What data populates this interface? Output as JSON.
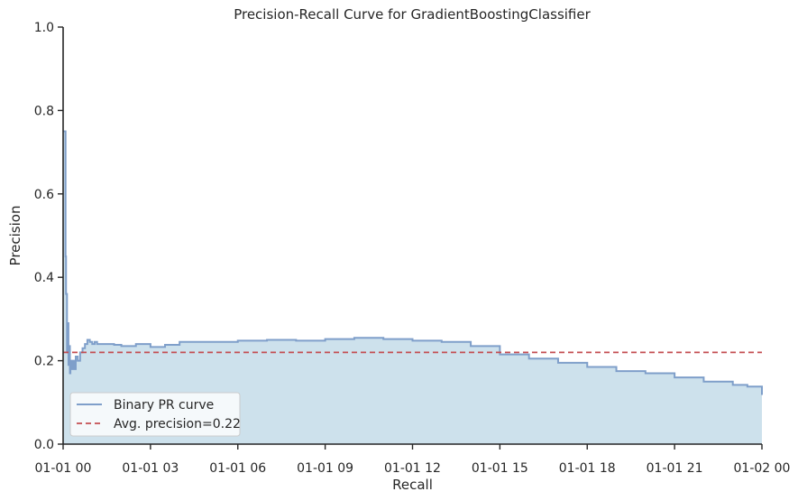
{
  "chart_data": {
    "type": "area",
    "title": "Precision-Recall Curve for GradientBoostingClassifier",
    "xlabel": "Recall",
    "ylabel": "Precision",
    "xlim": [
      "01-01 00",
      "01-02 00"
    ],
    "ylim": [
      0,
      1.0
    ],
    "x_ticks": [
      "01-01 00",
      "01-01 03",
      "01-01 06",
      "01-01 09",
      "01-01 12",
      "01-01 15",
      "01-01 18",
      "01-01 21",
      "01-02 00"
    ],
    "y_ticks": [
      "0.0",
      "0.2",
      "0.4",
      "0.6",
      "0.8",
      "1.0"
    ],
    "grid": false,
    "legend_position": "lower-left",
    "series": [
      {
        "name": "Binary PR curve",
        "color": "#7f9fca",
        "fill_color": "#cde1ec",
        "x": [
          "01-01 00:00",
          "01-01 00:03",
          "01-01 00:05",
          "01-01 00:06",
          "01-01 00:08",
          "01-01 00:09",
          "01-01 00:11",
          "01-01 00:12",
          "01-01 00:14",
          "01-01 00:15",
          "01-01 00:18",
          "01-01 00:20",
          "01-01 00:23",
          "01-01 00:26",
          "01-01 00:30",
          "01-01 00:35",
          "01-01 00:40",
          "01-01 00:45",
          "01-01 00:50",
          "01-01 00:55",
          "01-01 01:00",
          "01-01 01:05",
          "01-01 01:10",
          "01-01 01:20",
          "01-01 01:30",
          "01-01 01:45",
          "01-01 02:00",
          "01-01 02:30",
          "01-01 03:00",
          "01-01 03:30",
          "01-01 04:00",
          "01-01 05:00",
          "01-01 06:00",
          "01-01 07:00",
          "01-01 08:00",
          "01-01 09:00",
          "01-01 10:00",
          "01-01 11:00",
          "01-01 12:00",
          "01-01 13:00",
          "01-01 14:00",
          "01-01 15:00",
          "01-01 16:00",
          "01-01 17:00",
          "01-01 18:00",
          "01-01 19:00",
          "01-01 20:00",
          "01-01 21:00",
          "01-01 22:00",
          "01-01 23:00",
          "01-01 23:30",
          "01-02 00:00"
        ],
        "y": [
          0.75,
          0.75,
          0.45,
          0.36,
          0.22,
          0.29,
          0.19,
          0.235,
          0.17,
          0.2,
          0.18,
          0.2,
          0.18,
          0.21,
          0.2,
          0.22,
          0.23,
          0.24,
          0.25,
          0.245,
          0.24,
          0.245,
          0.24,
          0.24,
          0.24,
          0.238,
          0.235,
          0.24,
          0.233,
          0.238,
          0.245,
          0.245,
          0.248,
          0.25,
          0.248,
          0.252,
          0.255,
          0.252,
          0.248,
          0.245,
          0.235,
          0.215,
          0.205,
          0.195,
          0.185,
          0.175,
          0.17,
          0.16,
          0.15,
          0.142,
          0.138,
          0.118
        ]
      },
      {
        "name": "Avg. precision=0.22",
        "color": "#c44e52",
        "style": "dashed",
        "x": [
          "01-01 00:00",
          "01-02 00:00"
        ],
        "y": [
          0.22,
          0.22
        ]
      }
    ]
  }
}
